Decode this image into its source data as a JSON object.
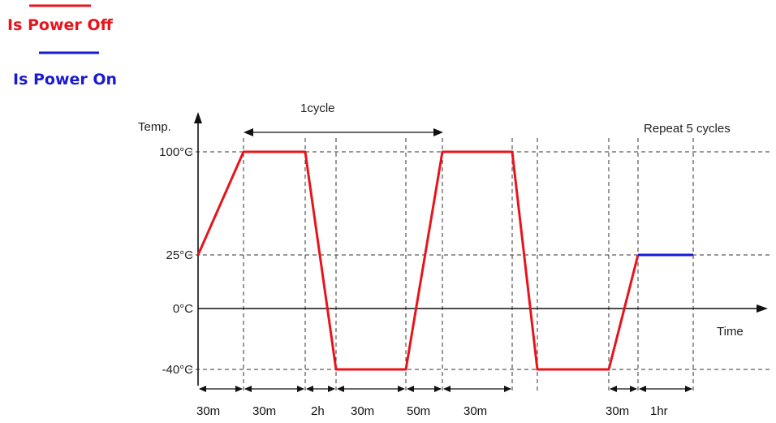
{
  "colors": {
    "power_off": "#e8141b",
    "power_on": "#1a1ad1",
    "axis": "#111111",
    "grid": "#333333"
  },
  "legend": {
    "power_off_label": "Is Power Off",
    "power_on_label": "Is Power On"
  },
  "chart_data": {
    "type": "line",
    "title": "",
    "xlabel": "Time",
    "ylabel": "Temp.",
    "y_ticks": [
      {
        "value": 100,
        "label": "100°C"
      },
      {
        "value": 25,
        "label": "25°C"
      },
      {
        "value": 0,
        "label": "0°C"
      },
      {
        "value": -40,
        "label": "-40°C"
      }
    ],
    "ylim": [
      -40,
      100
    ],
    "durations": [
      {
        "label": "30m"
      },
      {
        "label": "30m"
      },
      {
        "label": "2h"
      },
      {
        "label": "30m"
      },
      {
        "label": "50m"
      },
      {
        "label": "30m"
      },
      {
        "label": "30m"
      },
      {
        "label": "1hr"
      }
    ],
    "series": [
      {
        "name": "Is Power Off",
        "color": "#e8141b",
        "points_temp": [
          25,
          100,
          100,
          -40,
          -40,
          100,
          100,
          -40,
          -40,
          25
        ]
      },
      {
        "name": "Is Power On",
        "color": "#1a1ad1",
        "points_temp": [
          25,
          25
        ]
      }
    ],
    "annotations": {
      "cycle_label": "1cycle",
      "repeat_label": "Repeat 5 cycles"
    },
    "grid": true
  }
}
